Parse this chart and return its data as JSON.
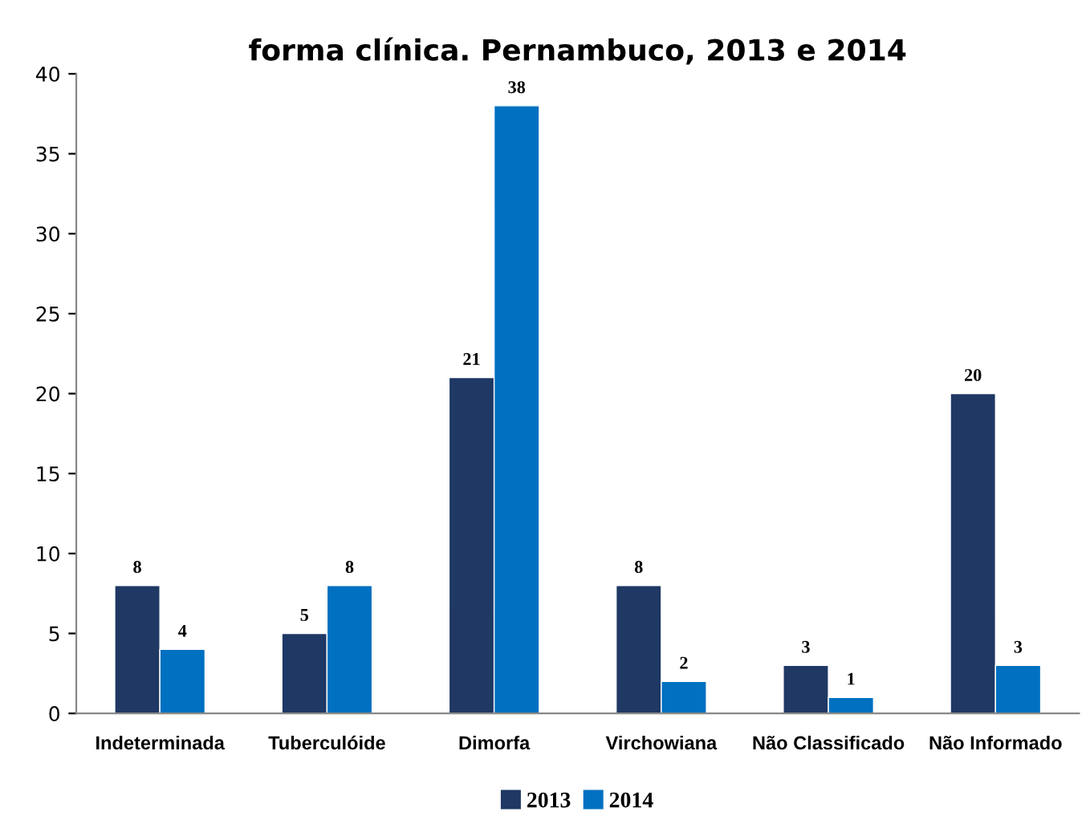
{
  "chart_data": {
    "type": "bar",
    "title": "forma clínica. Pernambuco, 2013 e 2014",
    "categories": [
      "Indeterminada",
      "Tuberculóide",
      "Dimorfa",
      "Virchowiana",
      "Não Classificado",
      "Não Informado"
    ],
    "series": [
      {
        "name": "2013",
        "color": "#1f3864",
        "values": [
          8,
          5,
          21,
          8,
          3,
          20
        ]
      },
      {
        "name": "2014",
        "color": "#0070c0",
        "values": [
          4,
          8,
          38,
          2,
          1,
          3
        ]
      }
    ],
    "ylim": [
      0,
      40
    ],
    "yticks": [
      0,
      5,
      10,
      15,
      20,
      25,
      30,
      35,
      40
    ],
    "grid": false,
    "legend": "bottom",
    "data_labels": true
  }
}
